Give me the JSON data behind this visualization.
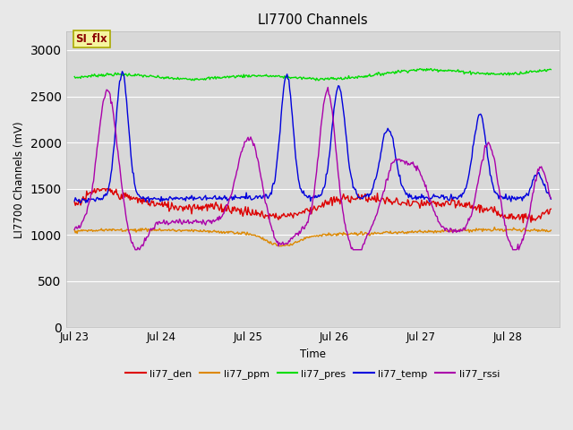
{
  "title": "LI7700 Channels",
  "ylabel": "LI7700 Channels (mV)",
  "xlabel": "Time",
  "ylim": [
    0,
    3200
  ],
  "yticks": [
    0,
    500,
    1000,
    1500,
    2000,
    2500,
    3000
  ],
  "background_color": "#e8e8e8",
  "plot_bg_color": "#d8d8d8",
  "legend_label": "SI_flx",
  "legend_label_color": "#8b0000",
  "legend_label_bg": "#f5f5a0",
  "series": {
    "li77_den": {
      "color": "#dd0000",
      "label": "li77_den"
    },
    "li77_ppm": {
      "color": "#dd8800",
      "label": "li77_ppm"
    },
    "li77_pres": {
      "color": "#00dd00",
      "label": "li77_pres"
    },
    "li77_temp": {
      "color": "#0000dd",
      "label": "li77_temp"
    },
    "li77_rssi": {
      "color": "#aa00aa",
      "label": "li77_rssi"
    }
  },
  "x_tick_labels": [
    "Jul 23",
    "Jul 24",
    "Jul 25",
    "Jul 26",
    "Jul 27",
    "Jul 28"
  ],
  "x_tick_positions": [
    0,
    1,
    2,
    3,
    4,
    5
  ]
}
